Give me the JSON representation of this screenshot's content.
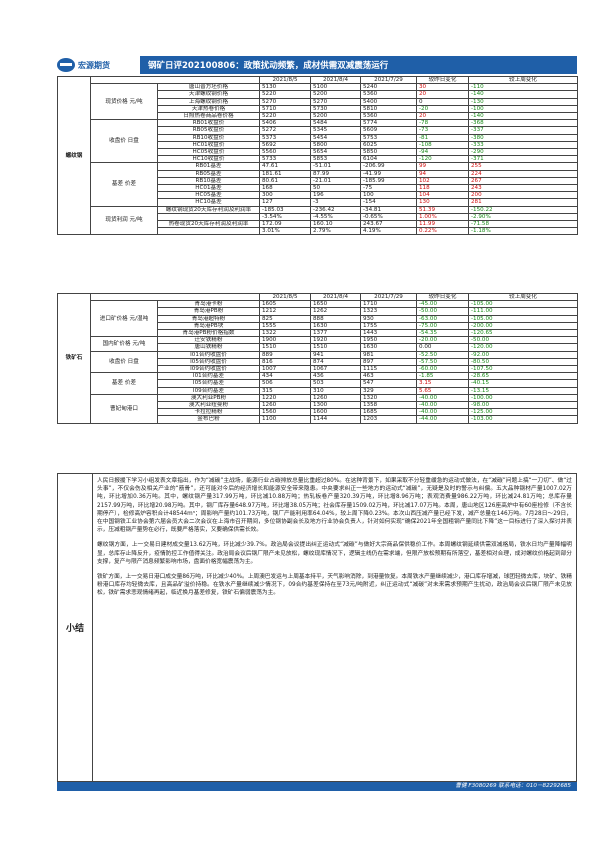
{
  "header": {
    "logo_text": "宏源期货",
    "title": "钢矿日评202100806：政策扰动频繁，成材供需双减震荡运行"
  },
  "steel": {
    "section": "螺纹钢",
    "dates": [
      "2021/8/5",
      "2021/8/4",
      "2021/7/29",
      "较昨日变化",
      "较上周变化"
    ],
    "groups": [
      {
        "label": "现货价格 元/吨",
        "rows": [
          {
            "name": "唐山普方坯价格",
            "v": [
              "5130",
              "5100",
              "5240",
              "30",
              "-110"
            ],
            "c": [
              "up",
              "dn"
            ]
          },
          {
            "name": "天津螺纹钢价格",
            "v": [
              "5220",
              "5200",
              "5360",
              "20",
              "-140"
            ],
            "c": [
              "up",
              "dn"
            ]
          },
          {
            "name": "上海螺纹钢价格",
            "v": [
              "5270",
              "5270",
              "5400",
              "0",
              "-130"
            ],
            "c": [
              "",
              "dn"
            ]
          },
          {
            "name": "天津热卷价格",
            "v": [
              "5710",
              "5730",
              "5810",
              "-20",
              "-100"
            ],
            "c": [
              "dn",
              "dn"
            ]
          },
          {
            "name": "日照热卷商品卷价格",
            "v": [
              "5220",
              "5200",
              "5360",
              "20",
              "-140"
            ],
            "c": [
              "up",
              "dn"
            ]
          }
        ]
      },
      {
        "label": "收盘价 日盘",
        "rows": [
          {
            "name": "RB01收盘价",
            "v": [
              "5406",
              "5484",
              "5774",
              "-78",
              "-368"
            ],
            "c": [
              "dn",
              "dn"
            ]
          },
          {
            "name": "RB05收盘价",
            "v": [
              "5272",
              "5345",
              "5609",
              "-73",
              "-337"
            ],
            "c": [
              "dn",
              "dn"
            ]
          },
          {
            "name": "RB10收盘价",
            "v": [
              "5373",
              "5454",
              "5753",
              "-81",
              "-380"
            ],
            "c": [
              "dn",
              "dn"
            ]
          },
          {
            "name": "HC01收盘价",
            "v": [
              "5692",
              "5800",
              "6025",
              "-108",
              "-333"
            ],
            "c": [
              "dn",
              "dn"
            ]
          },
          {
            "name": "HC05收盘价",
            "v": [
              "5560",
              "5654",
              "5850",
              "-94",
              "-290"
            ],
            "c": [
              "dn",
              "dn"
            ]
          },
          {
            "name": "HC10收盘价",
            "v": [
              "5733",
              "5853",
              "6104",
              "-120",
              "-371"
            ],
            "c": [
              "dn",
              "dn"
            ]
          }
        ]
      },
      {
        "label": "基差 价差",
        "rows": [
          {
            "name": "RB01基差",
            "v": [
              "47.61",
              "-51.01",
              "-206.99",
              "99",
              "255"
            ],
            "c": [
              "up",
              "up"
            ]
          },
          {
            "name": "RB05基差",
            "v": [
              "181.61",
              "87.99",
              "-41.99",
              "94",
              "224"
            ],
            "c": [
              "up",
              "up"
            ]
          },
          {
            "name": "RB10基差",
            "v": [
              "80.61",
              "-21.01",
              "-185.99",
              "102",
              "267"
            ],
            "c": [
              "up",
              "up"
            ]
          },
          {
            "name": "HC01基差",
            "v": [
              "168",
              "50",
              "-75",
              "118",
              "243"
            ],
            "c": [
              "up",
              "up"
            ]
          },
          {
            "name": "HC05基差",
            "v": [
              "300",
              "196",
              "100",
              "104",
              "200"
            ],
            "c": [
              "up",
              "up"
            ]
          },
          {
            "name": "HC10基差",
            "v": [
              "127",
              "-3",
              "-154",
              "130",
              "281"
            ],
            "c": [
              "up",
              "up"
            ]
          }
        ]
      },
      {
        "label": "现货利润 元/吨",
        "rows": [
          {
            "name": "螺纹钢现货20天库存利润及利润率",
            "v": [
              "-185.03",
              "-236.42",
              "-34.81",
              "51.39",
              "-150.22"
            ],
            "c": [
              "up",
              "dn"
            ]
          },
          {
            "name": "",
            "v": [
              "-3.54%",
              "-4.55%",
              "-0.65%",
              "1.00%",
              "-2.90%"
            ],
            "c": [
              "up",
              "dn"
            ]
          },
          {
            "name": "热卷现货20天库存利润及利润率",
            "v": [
              "172.09",
              "160.10",
              "243.67",
              "11.99",
              "-71.58"
            ],
            "c": [
              "up",
              "dn"
            ]
          },
          {
            "name": "",
            "v": [
              "3.01%",
              "2.79%",
              "4.19%",
              "0.22%",
              "-1.18%"
            ],
            "c": [
              "up",
              "dn"
            ]
          }
        ]
      }
    ]
  },
  "ore": {
    "section": "铁矿石",
    "dates": [
      "2021/8/5",
      "2021/8/4",
      "2021/7/29",
      "较昨日变化",
      "较上周变化"
    ],
    "groups": [
      {
        "label": "进口矿价格 元/湿吨",
        "rows": [
          {
            "name": "青岛港卡粉",
            "v": [
              "1605",
              "1650",
              "1710",
              "-45.00",
              "-105.00"
            ],
            "c": [
              "dn",
              "dn"
            ]
          },
          {
            "name": "青岛港PB粉",
            "v": [
              "1212",
              "1262",
              "1323",
              "-50.00",
              "-111.00"
            ],
            "c": [
              "dn",
              "dn"
            ]
          },
          {
            "name": "青岛港超特粉",
            "v": [
              "825",
              "888",
              "930",
              "-63.00",
              "-105.00"
            ],
            "c": [
              "dn",
              "dn"
            ]
          },
          {
            "name": "青岛港PB块",
            "v": [
              "1555",
              "1630",
              "1755",
              "-75.00",
              "-200.00"
            ],
            "c": [
              "dn",
              "dn"
            ]
          },
          {
            "name": "青岛港PB粉价格指数",
            "v": [
              "1322",
              "1377",
              "1443",
              "-54.35",
              "-120.65"
            ],
            "c": [
              "dn",
              "dn"
            ]
          }
        ]
      },
      {
        "label": "国内矿价格 元/吨",
        "rows": [
          {
            "name": "迁安铁精粉",
            "v": [
              "1900",
              "1920",
              "1950",
              "-20.00",
              "-50.00"
            ],
            "c": [
              "dn",
              "dn"
            ]
          },
          {
            "name": "唐山铁精粉",
            "v": [
              "1510",
              "1510",
              "1630",
              "0.00",
              "-120.00"
            ],
            "c": [
              "",
              "dn"
            ]
          }
        ]
      },
      {
        "label": "收盘价 日盘",
        "rows": [
          {
            "name": "I01合约收盘价",
            "v": [
              "889",
              "941",
              "981",
              "-52.50",
              "-92.00"
            ],
            "c": [
              "dn",
              "dn"
            ]
          },
          {
            "name": "I05合约收盘价",
            "v": [
              "816",
              "874",
              "897",
              "-57.50",
              "-80.50"
            ],
            "c": [
              "dn",
              "dn"
            ]
          },
          {
            "name": "I09合约收盘价",
            "v": [
              "1007",
              "1067",
              "1115",
              "-60.00",
              "-107.50"
            ],
            "c": [
              "dn",
              "dn"
            ]
          }
        ]
      },
      {
        "label": "基差 价差",
        "rows": [
          {
            "name": "I01合约基差",
            "v": [
              "434",
              "436",
              "463",
              "-1.85",
              "-28.65"
            ],
            "c": [
              "dn",
              "dn"
            ]
          },
          {
            "name": "I05合约基差",
            "v": [
              "506",
              "503",
              "547",
              "3.15",
              "-40.15"
            ],
            "c": [
              "up",
              "dn"
            ]
          },
          {
            "name": "I09合约基差",
            "v": [
              "315",
              "310",
              "329",
              "5.65",
              "-13.15"
            ],
            "c": [
              "up",
              "dn"
            ]
          }
        ]
      },
      {
        "label": "曹妃甸港口",
        "rows": [
          {
            "name": "澳大利亚PB粉",
            "v": [
              "1220",
              "1260",
              "1320",
              "-40.00",
              "-100.00"
            ],
            "c": [
              "dn",
              "dn"
            ]
          },
          {
            "name": "澳大利亚纽曼粉",
            "v": [
              "1260",
              "1300",
              "1358",
              "-40.00",
              "-98.00"
            ],
            "c": [
              "dn",
              "dn"
            ]
          },
          {
            "name": "卡拉拉精粉",
            "v": [
              "1560",
              "1600",
              "1685",
              "-40.00",
              "-125.00"
            ],
            "c": [
              "dn",
              "dn"
            ]
          },
          {
            "name": "金布巴粉",
            "v": [
              "1100",
              "1144",
              "1203",
              "-44.00",
              "-103.00"
            ],
            "c": [
              "dn",
              "dn"
            ]
          }
        ]
      }
    ]
  },
  "summary": {
    "label": "小结",
    "paragraphs": [
      "人民日报援下学习小组发表文章指出，作为“减碳”主战场，能源行业占碳排放总量比重超过80%。在这种背景下，如果采取不分轻重缓急的运动式做法，在“减碳”问题上搞“一刀切”、做“过头事”，不仅会伤及相关产业的“筋骨”，还可能对今后的经济增长和能源安全带来隐患。中央要求纠正一些地方的运动式“减碳”，无疑是及时的警示与纠偏。五大品种钢材产量1007.02万吨，环比增加0.36万吨。其中，螺纹钢产量317.99万吨，环比减10.88万吨；热轧板卷产量320.39万吨，环比增8.96万吨；表观消费量986.22万吨，环比减24.81万吨；总库存量2157.99万吨，环比增20.98万吨。其中，钢厂库存量648.97万吨，环比增38.05万吨；社会库存量1509.02万吨，环比减17.07万吨。本周，唐山地区126座高炉中有60座检修（不含长期停产），检修高炉容积合计48544m³；周影响产量约101.73万吨，钢厂产能利用率64.04%，较上周下降0.23%。本次山西压减产量已经下发，减产总量在146万吨。7月28日～29日，在中国钢铁工业协会第六届会员大会二次会议在上海市召开期间，多位钢协副会长及地方行业协会负责人，针对如何实现“确保2021年全国粗钢产量同比下降”这一目标进行了深入探讨并表示，压减粗钢产量势在必行，既要严格落实，又要确保供需长效。",
      "螺纹钢方面，上一交易日建材成交量13.62万吨，环比减少39.7%。政治局会议提出纠正运动式“减碳”与做好大宗商品保供稳价工作。本周螺纹钢延续供需双减格局，铁水日均产量降幅明显，总库存止降反升，疫情防控工作值得关注。政治局会议后钢厂限产未见放松，螺纹现库情况下，逻辑主线仍在需求端，但限产放松预期有所落空，基差相对合理，成对螺纹价格起到部分支撑，复产与限产消息频繁影响市场，盘面价格宽幅震荡为主。",
      "铁矿方面，上一交易日港口成交量86万吨，环比减少40%。上周澳巴发运与上周基本持平，天气影响消除，到港量恢复。本周铁水产量继续减少，港口库存增减，球团轻微去库，块矿、铁精粉港口库存均轻微去库，且高品矿溢价持稳。在铁水产量继续减少情况下，09合约基差保持在至73元/吨附近，纠正运动式“减碳”对未来需求预期产生扰动，政治局会议后钢厂限产未见放松，铁矿需求悲观情绪再起，临近换月基差修复，铁矿石偏弱震荡为主。"
    ]
  },
  "footer": {
    "text": "曹健 F3080269 联系电话：010－82292685"
  }
}
